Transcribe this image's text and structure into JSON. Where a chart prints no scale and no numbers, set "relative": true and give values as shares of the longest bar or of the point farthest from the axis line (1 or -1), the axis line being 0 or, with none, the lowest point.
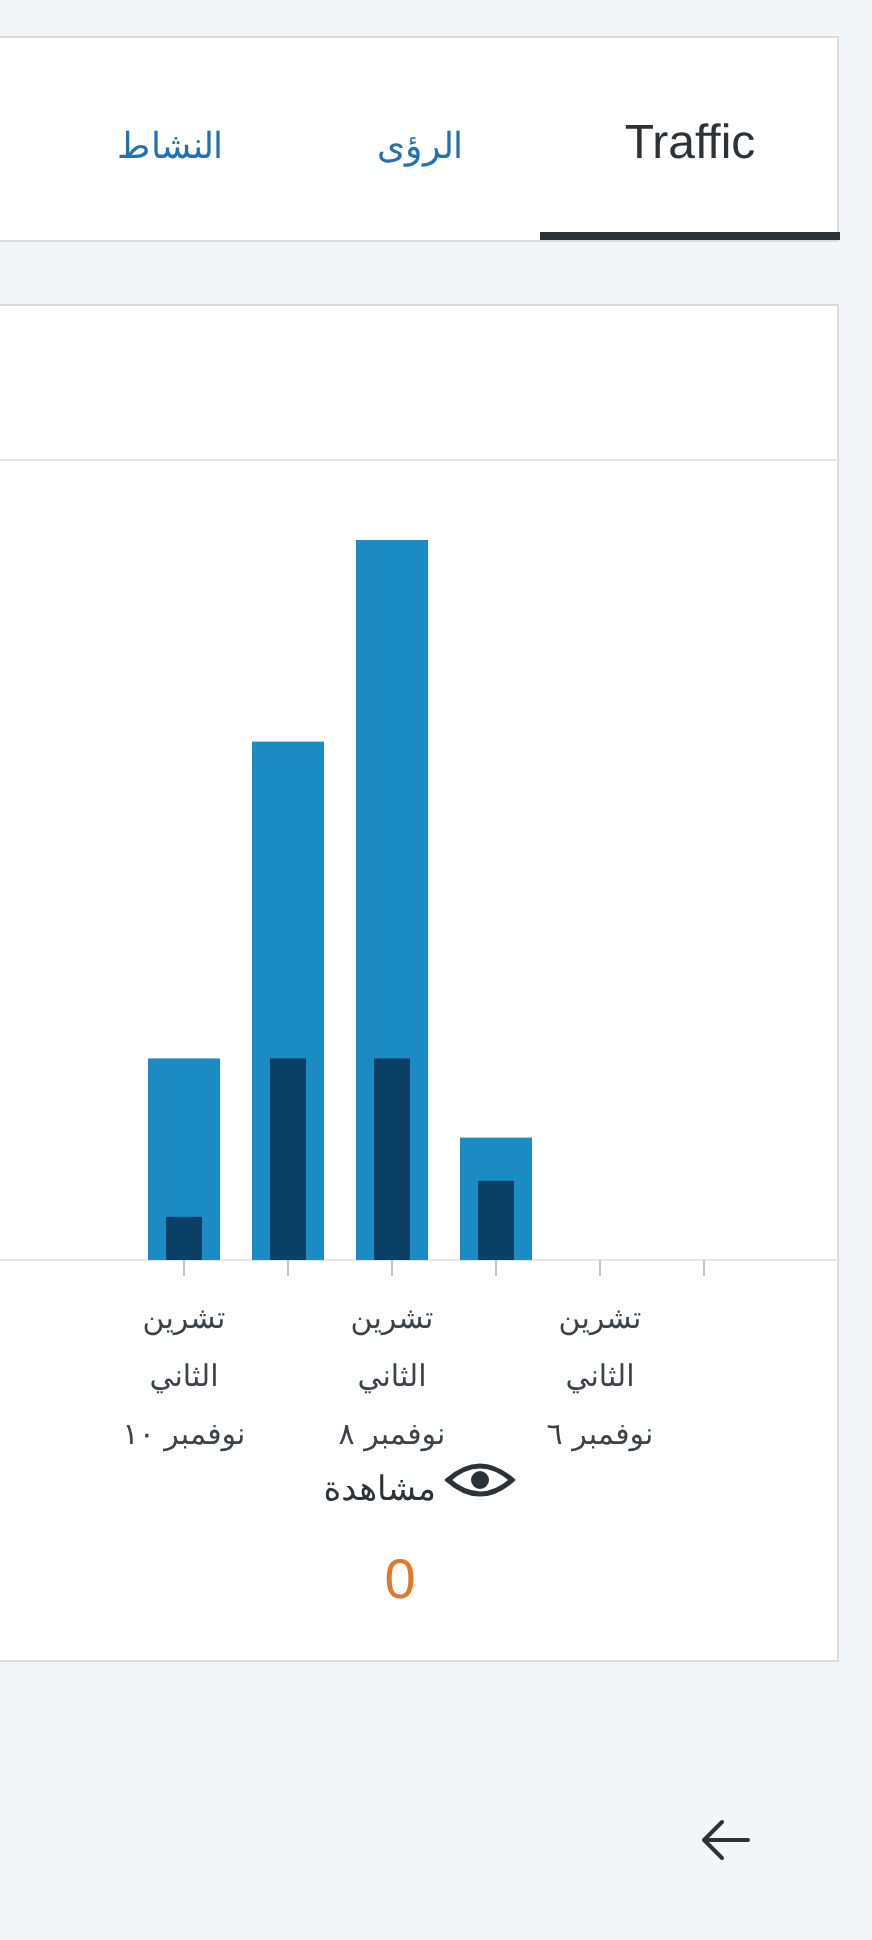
{
  "chart_data": {
    "type": "bar",
    "relative": true,
    "categories": [
      "تشرين\nالثاني\nنوفمبر ١٠",
      null,
      "تشرين\nالثاني\nنوفمبر ٨",
      null,
      "تشرين\nالثاني\nنوفمبر ٦",
      null
    ],
    "series": [
      {
        "color": "#1a8bc3",
        "values": [
          0.28,
          0.72,
          1,
          0.17,
          0,
          0
        ]
      },
      {
        "color": "#0a4066",
        "values": [
          0.06,
          0.28,
          0.28,
          0.11,
          0,
          0
        ]
      }
    ],
    "annotations": [
      "Traffic",
      "الرؤى",
      "النشاط",
      "مشاهدة",
      "0"
    ]
  }
}
